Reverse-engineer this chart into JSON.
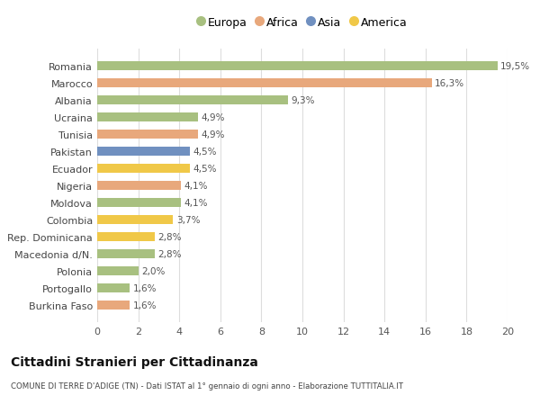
{
  "categories": [
    "Burkina Faso",
    "Portogallo",
    "Polonia",
    "Macedonia d/N.",
    "Rep. Dominicana",
    "Colombia",
    "Moldova",
    "Nigeria",
    "Ecuador",
    "Pakistan",
    "Tunisia",
    "Ucraina",
    "Albania",
    "Marocco",
    "Romania"
  ],
  "values": [
    1.6,
    1.6,
    2.0,
    2.8,
    2.8,
    3.7,
    4.1,
    4.1,
    4.5,
    4.5,
    4.9,
    4.9,
    9.3,
    16.3,
    19.5
  ],
  "labels": [
    "1,6%",
    "1,6%",
    "2,0%",
    "2,8%",
    "2,8%",
    "3,7%",
    "4,1%",
    "4,1%",
    "4,5%",
    "4,5%",
    "4,9%",
    "4,9%",
    "9,3%",
    "16,3%",
    "19,5%"
  ],
  "colors": [
    "#e8a87c",
    "#a8c080",
    "#a8c080",
    "#a8c080",
    "#f0c848",
    "#f0c848",
    "#a8c080",
    "#e8a87c",
    "#f0c848",
    "#7090c0",
    "#e8a87c",
    "#a8c080",
    "#a8c080",
    "#e8a87c",
    "#a8c080"
  ],
  "legend": [
    {
      "label": "Europa",
      "color": "#a8c080"
    },
    {
      "label": "Africa",
      "color": "#e8a87c"
    },
    {
      "label": "Asia",
      "color": "#7090c0"
    },
    {
      "label": "America",
      "color": "#f0c848"
    }
  ],
  "title": "Cittadini Stranieri per Cittadinanza",
  "subtitle": "COMUNE DI TERRE D'ADIGE (TN) - Dati ISTAT al 1° gennaio di ogni anno - Elaborazione TUTTITALIA.IT",
  "xlim": [
    0,
    20
  ],
  "xticks": [
    0,
    2,
    4,
    6,
    8,
    10,
    12,
    14,
    16,
    18,
    20
  ],
  "bg_color": "#ffffff",
  "grid_color": "#dddddd",
  "bar_height": 0.55
}
